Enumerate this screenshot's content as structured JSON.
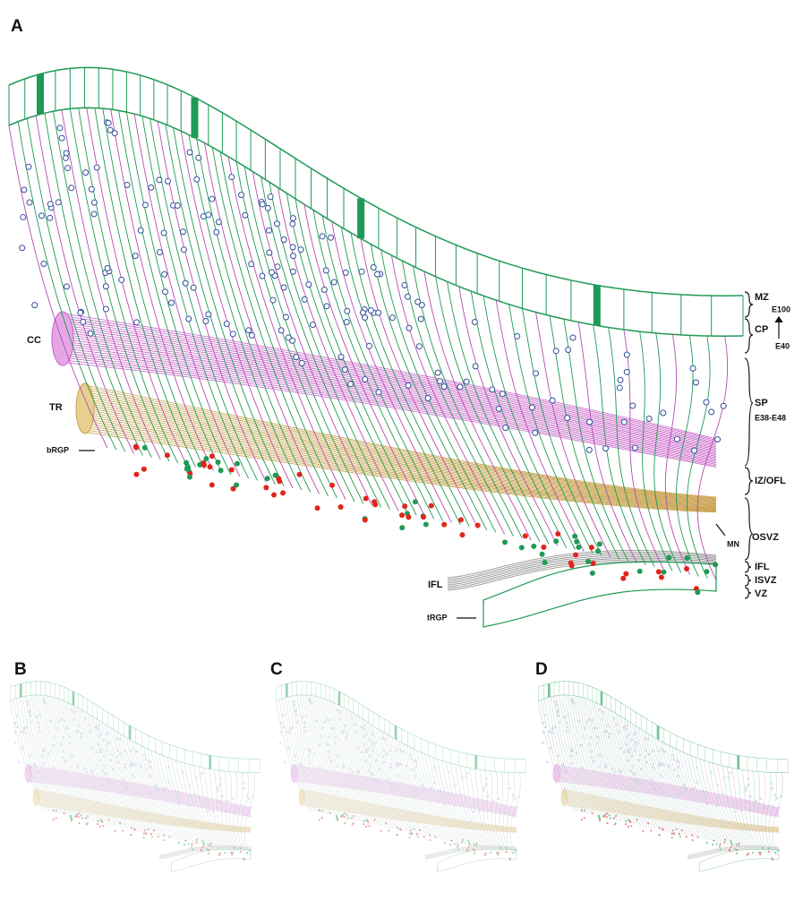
{
  "panels": {
    "a": "A",
    "b": "B",
    "c": "C",
    "d": "D"
  },
  "left_labels": {
    "cc": "CC",
    "tr": "TR",
    "brgp": "bRGP",
    "ifl": "IFL",
    "trgp": "tRGP"
  },
  "zones": {
    "mz": "MZ",
    "cp": "CP",
    "e100": "E100",
    "e40": "E40",
    "sp": "SP",
    "sp_age": "E38-E48",
    "iz": "IZ/OFL",
    "osvz": "OSVZ",
    "mn": "MN",
    "ifl": "IFL",
    "isvz": "ISVZ",
    "vz": "VZ"
  }
}
